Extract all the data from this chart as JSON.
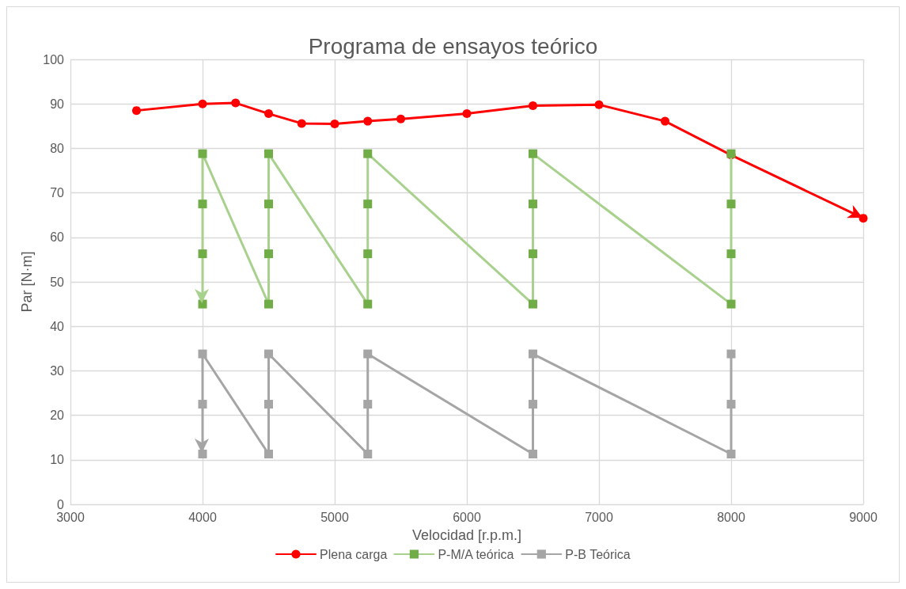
{
  "chart_data": {
    "type": "line",
    "title": "Programa de ensayos teórico",
    "xlabel": "Velocidad [r.p.m.]",
    "ylabel": "Par [N·m]",
    "xlim": [
      3000,
      9000
    ],
    "xticks": [
      3000,
      4000,
      5000,
      6000,
      7000,
      8000,
      9000
    ],
    "ylim": [
      0,
      100
    ],
    "yticks": [
      0,
      10,
      20,
      30,
      40,
      50,
      60,
      70,
      80,
      90,
      100
    ],
    "grid": true,
    "legend": "bottom",
    "line_style": "solid",
    "series": [
      {
        "name": "Plena carga",
        "color": "#ff0000",
        "marker": "circle",
        "x": [
          3500,
          4000,
          4250,
          4500,
          4750,
          5000,
          5250,
          5500,
          6000,
          6500,
          7000,
          7500,
          8000,
          9000
        ],
        "values": [
          88.5,
          90,
          90.2,
          87.8,
          85.6,
          85.5,
          86.1,
          86.6,
          87.8,
          89.6,
          89.8,
          86.1,
          78.5,
          64.3
        ]
      },
      {
        "name": "P-M/A teórica",
        "color": "#a9d18e",
        "marker": "square",
        "x": [
          8000,
          8000,
          8000,
          8000,
          6500,
          6500,
          6500,
          6500,
          5250,
          5250,
          5250,
          5250,
          4500,
          4500,
          4500,
          4500,
          4000,
          4000,
          4000,
          4000
        ],
        "values": [
          78.8,
          67.5,
          56.3,
          45,
          78.8,
          67.5,
          56.3,
          45,
          78.8,
          67.5,
          56.3,
          45,
          78.8,
          67.5,
          56.3,
          45,
          78.8,
          67.5,
          56.3,
          45
        ]
      },
      {
        "name": "P-B Teórica",
        "color": "#a5a5a5",
        "marker": "square",
        "x": [
          8000,
          8000,
          8000,
          6500,
          6500,
          6500,
          5250,
          5250,
          5250,
          4500,
          4500,
          4500,
          4000,
          4000,
          4000
        ],
        "values": [
          33.8,
          22.5,
          11.3,
          33.8,
          22.5,
          11.3,
          33.8,
          22.5,
          11.3,
          33.8,
          22.5,
          11.3,
          33.8,
          22.5,
          11.3
        ]
      }
    ]
  }
}
